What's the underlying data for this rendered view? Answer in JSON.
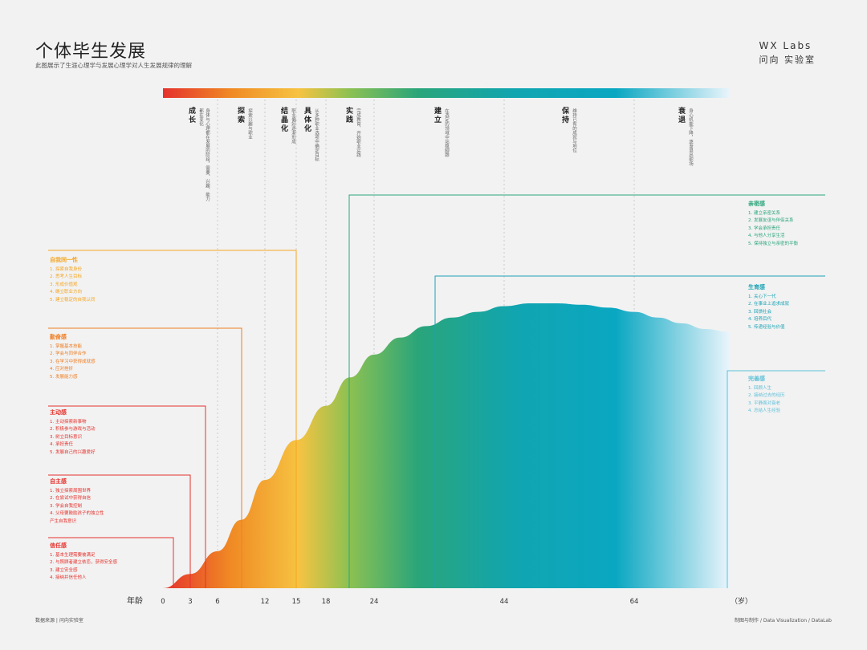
{
  "header": {
    "title": "个体毕生发展",
    "subtitle": "此图展示了生涯心理学与发展心理学对人生发展规律的理解"
  },
  "logo": {
    "line1": "WX Labs",
    "line2": "问向 实验室"
  },
  "footer": {
    "left": "数据来源 | 问向实验室",
    "right": "制图与制作 / Data Visualization / DataLab"
  },
  "axis": {
    "label": "年龄",
    "unit": "（岁）"
  },
  "stages": [
    {
      "name": "成长",
      "desc": "身体与心理都在发展的阶段，需要、兴趣、能力都在变化"
    },
    {
      "name": "探索",
      "desc": "探索兴趣与职业"
    },
    {
      "name": "结晶化",
      "desc": "职业偏好逐渐形成"
    },
    {
      "name": "具体化",
      "desc": "从多种职业选项中确定目标"
    },
    {
      "name": "实践",
      "desc": "完成教育、开始职业实践"
    },
    {
      "name": "建立",
      "desc": "在选定的领域中站稳脚跟"
    },
    {
      "name": "保持",
      "desc": "维持已有的成就与地位"
    },
    {
      "name": "衰退",
      "desc": "身心机能下降，逐渐退出职场"
    }
  ],
  "boxes": [
    {
      "title": "信任感",
      "color": "#e5322d",
      "items": [
        "1. 基本生理需要被满足",
        "2. 与照顾者建立依恋，获得安全感",
        "3. 建立安全感",
        "4. 接纳并信任他人"
      ]
    },
    {
      "title": "自主感",
      "color": "#e5322d",
      "items": [
        "1. 独立探索周围世界",
        "2. 在尝试中获得自信",
        "3. 学会自我控制",
        "4. 父母要鼓励孩子的独立性",
        "产生自我意识"
      ]
    },
    {
      "title": "主动感",
      "color": "#e5322d",
      "items": [
        "1. 主动探索新事物",
        "2. 积极参与游戏与活动",
        "3. 树立目标意识",
        "4. 承担责任",
        "5. 发展自己的兴趣爱好"
      ]
    },
    {
      "title": "勤奋感",
      "color": "#ef7d22",
      "items": [
        "1. 掌握基本技能",
        "2. 学会与同伴合作",
        "3. 在学习中获得成就感",
        "4. 应对挫折",
        "5. 发展能力感"
      ]
    },
    {
      "title": "自我同一性",
      "color": "#f5a623",
      "items": [
        "1. 探索自我身份",
        "2. 思考人生目标",
        "3. 形成价值观",
        "4. 确立职业方向",
        "5. 建立稳定的自我认同"
      ]
    },
    {
      "title": "亲密感",
      "color": "#2aa57a",
      "items": [
        "1. 建立亲密关系",
        "2. 发展友谊与伴侣关系",
        "3. 学会承担责任",
        "4. 与他人分享生活",
        "5. 保持独立与亲密的平衡"
      ]
    },
    {
      "title": "生育感",
      "color": "#1aa3b5",
      "items": [
        "1. 关心下一代",
        "2. 在事业上追求成就",
        "3. 回馈社会",
        "4. 培养后代",
        "5. 传递经验与价值"
      ]
    },
    {
      "title": "完善感",
      "color": "#5fc0d8",
      "items": [
        "1. 回顾人生",
        "2. 接纳过去的经历",
        "3. 平静面对衰老",
        "4. 总结人生经验"
      ]
    }
  ],
  "chart_data": {
    "type": "area",
    "title": "个体毕生发展",
    "xlabel": "年龄",
    "x_ticks": [
      0,
      3,
      6,
      12,
      15,
      18,
      24,
      44,
      64
    ],
    "x": [
      0,
      3,
      6,
      9,
      12,
      15,
      18,
      21,
      24,
      28,
      32,
      36,
      40,
      44,
      48,
      52,
      56,
      60,
      64,
      68,
      72,
      76,
      80
    ],
    "y": [
      0,
      0.05,
      0.13,
      0.24,
      0.38,
      0.52,
      0.64,
      0.74,
      0.82,
      0.88,
      0.92,
      0.95,
      0.97,
      0.99,
      1.0,
      1.0,
      0.995,
      0.985,
      0.97,
      0.95,
      0.93,
      0.91,
      0.9
    ],
    "stage_boundaries": [
      6,
      12,
      15,
      18,
      24,
      44,
      64
    ],
    "colors": [
      "#e5322d",
      "#f08a24",
      "#f6c342",
      "#8cc152",
      "#2aa57a",
      "#11a5b0",
      "#0aa7c2",
      "#e8f4fb"
    ]
  }
}
